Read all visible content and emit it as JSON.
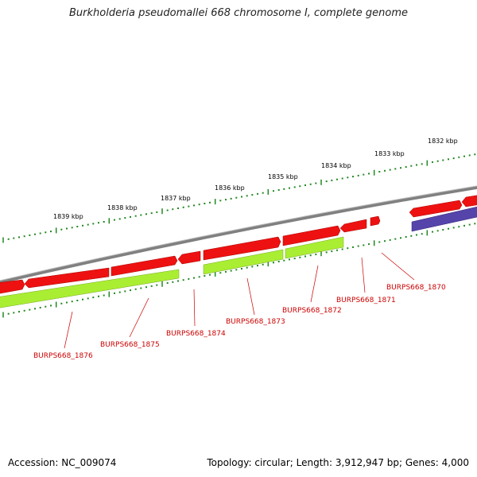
{
  "title": "Burkholderia pseudomallei 668 chromosome I, complete genome",
  "accession": "Accession: NC_009074",
  "topology": "Topology: circular; Length: 3,912,947 bp; Genes: 4,000",
  "colors": {
    "backbone": "#808080",
    "cds_forward": "#ee1111",
    "cds_reverse": "#aaee33",
    "rna": "#5544aa",
    "ticks": "#228822",
    "labels": "#cc0000"
  },
  "scale_labels": [
    "1832 kbp",
    "1833 kbp",
    "1834 kbp",
    "1835 kbp",
    "1836 kbp",
    "1837 kbp",
    "1838 kbp",
    "1839 kbp"
  ],
  "gene_labels": [
    "BURPS668_1870",
    "BURPS668_1871",
    "BURPS668_1872",
    "BURPS668_1873",
    "BURPS668_1874",
    "BURPS668_1875",
    "BURPS668_1876"
  ]
}
